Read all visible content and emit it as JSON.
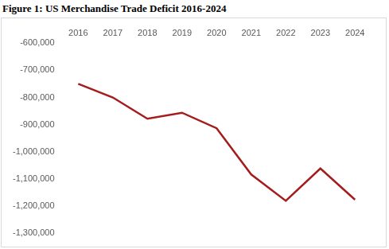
{
  "chart_data": {
    "type": "line",
    "title": "Figure 1: US Merchandise Trade Deficit 2016-2024",
    "categories": [
      "2016",
      "2017",
      "2018",
      "2019",
      "2020",
      "2021",
      "2022",
      "2023",
      "2024"
    ],
    "values": [
      -750000,
      -800000,
      -878000,
      -856000,
      -913000,
      -1083000,
      -1180000,
      -1061000,
      -1176000
    ],
    "color": "#a51c1c",
    "ylim": [
      -1300000,
      -600000
    ],
    "yticks": [
      {
        "value": -600000,
        "label": "-600,000"
      },
      {
        "value": -700000,
        "label": "-700,000"
      },
      {
        "value": -800000,
        "label": "-800,000"
      },
      {
        "value": -900000,
        "label": "-900,000"
      },
      {
        "value": -1000000,
        "label": "-1,000,000"
      },
      {
        "value": -1100000,
        "label": "-1,100,000"
      },
      {
        "value": -1200000,
        "label": "-1,200,000"
      },
      {
        "value": -1300000,
        "label": "-1,300,000"
      }
    ],
    "grid": false
  }
}
